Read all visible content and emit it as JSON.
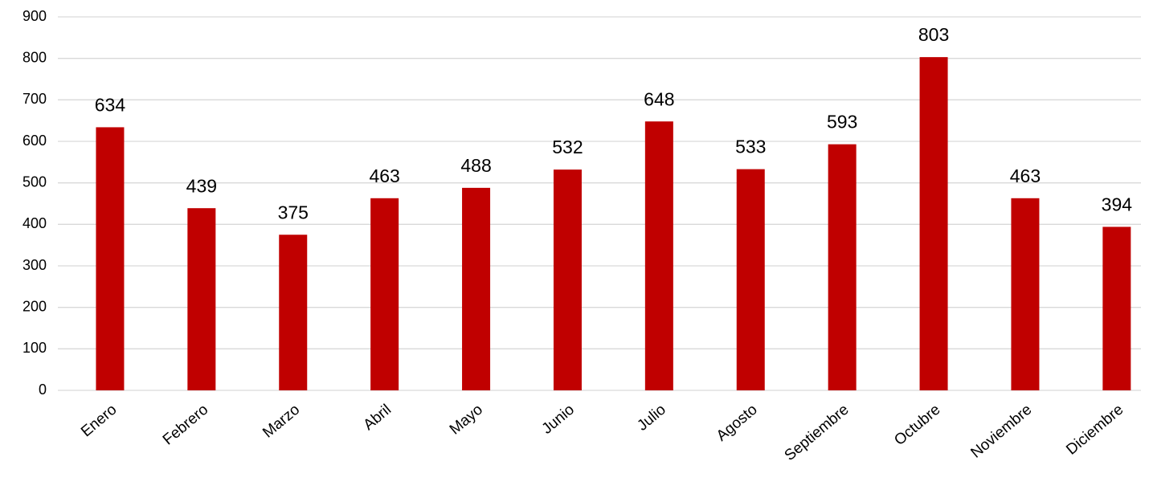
{
  "chart_data": {
    "type": "bar",
    "categories": [
      "Enero",
      "Febrero",
      "Marzo",
      "Abril",
      "Mayo",
      "Junio",
      "Julio",
      "Agosto",
      "Septiembre",
      "Octubre",
      "Noviembre",
      "Diciembre"
    ],
    "values": [
      634,
      439,
      375,
      463,
      488,
      532,
      648,
      533,
      593,
      803,
      463,
      394
    ],
    "color": "#c00000",
    "ylim": [
      0,
      900
    ],
    "yticks": [
      0,
      100,
      200,
      300,
      400,
      500,
      600,
      700,
      800,
      900
    ],
    "grid": true
  }
}
